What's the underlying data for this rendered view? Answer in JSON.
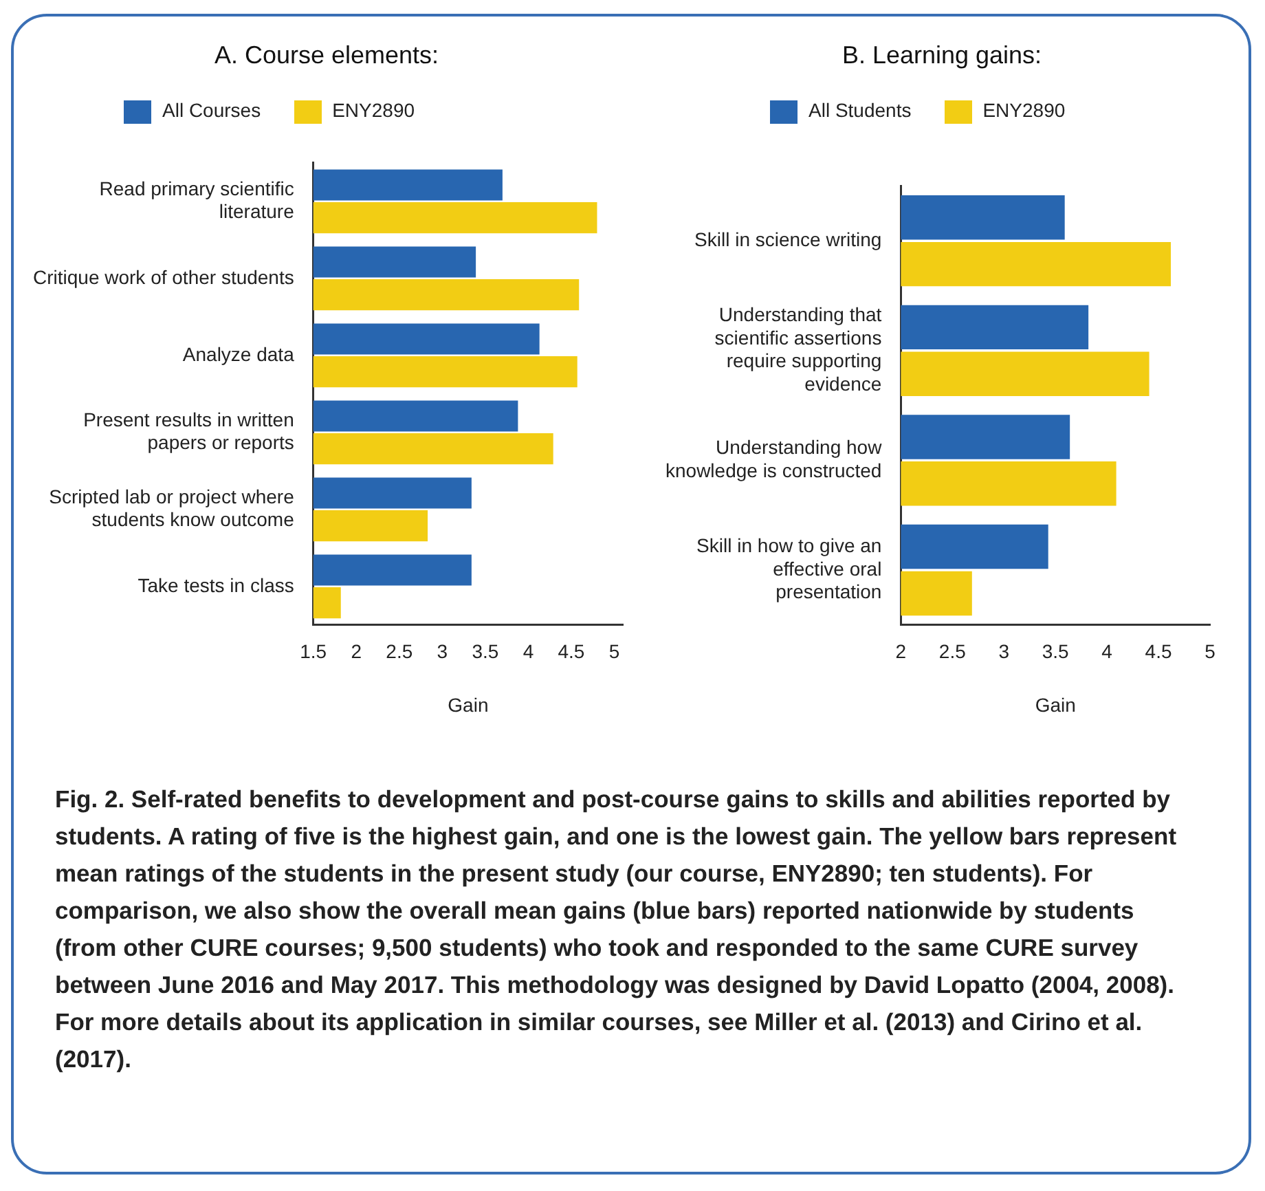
{
  "chart_data": [
    {
      "type": "bar",
      "orientation": "horizontal",
      "title": "A. Course elements:",
      "legend": "top left",
      "grid": false,
      "xlabel": "Gain",
      "xlim": [
        1.5,
        5.1
      ],
      "xticks": [
        1.5,
        2,
        2.5,
        3,
        3.5,
        4,
        4.5,
        5
      ],
      "categories": [
        "Read primary scientific literature",
        "Critique work of other students",
        "Analyze data",
        "Present results in written papers or reports",
        "Scripted lab or project where students know outcome",
        "Take tests in class"
      ],
      "series": [
        {
          "name": "All Courses",
          "color": "#2866b0",
          "values": [
            3.7,
            3.39,
            4.13,
            3.88,
            3.34,
            3.34
          ]
        },
        {
          "name": "ENY2890",
          "color": "#f2cd14",
          "values": [
            4.8,
            4.59,
            4.57,
            4.29,
            2.83,
            1.82
          ]
        }
      ]
    },
    {
      "type": "bar",
      "orientation": "horizontal",
      "title": "B. Learning gains:",
      "legend": "top left",
      "grid": false,
      "xlabel": "Gain",
      "xlim": [
        2,
        5
      ],
      "xticks": [
        2,
        2.5,
        3,
        3.5,
        4,
        4.5,
        5
      ],
      "categories": [
        "Skill in science writing",
        "Understanding that scientific assertions require supporting evidence",
        "Understanding how knowledge is constructed",
        "Skill in how to give an effective oral presentation"
      ],
      "series": [
        {
          "name": "All Students",
          "color": "#2866b0",
          "values": [
            3.59,
            3.82,
            3.64,
            3.43
          ]
        },
        {
          "name": "ENY2890",
          "color": "#f2cd14",
          "values": [
            4.62,
            4.41,
            4.09,
            2.69
          ]
        }
      ],
      "annotations": [
        "Fig. 2. Self-rated benefits to development and post-course gains to skills and abilities reported by students. A rating of five is the highest gain, and one is the lowest gain. The yellow bars represent mean ratings of the students in the present study (our course, ENY2890; ten students). For comparison, we also show the overall mean gains (blue bars) reported nationwide by students (from other CURE courses; 9,500 students) who took and responded to the same CURE survey between June 2016 and May 2017. This methodology was designed by David Lopatto (2004, 2008). For more details about its application in similar courses, see Miller et al. (2013) and Cirino et al. (2017)."
      ]
    }
  ]
}
